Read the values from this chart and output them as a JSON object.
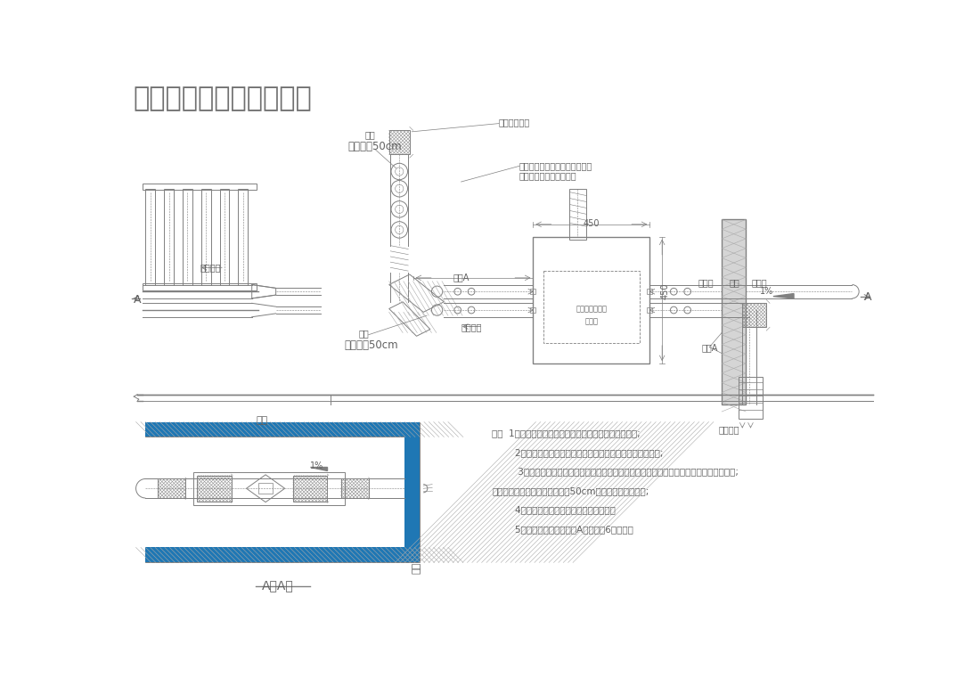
{
  "title": "家用中央新风系统示意图",
  "bg_color": "#ffffff",
  "line_color": "#808080",
  "text_color": "#606060",
  "note_lines": [
    "注：  1、本图为采用全热交换新风机组的新风系统平面图;",
    "        2、热交换新风机组需预留折卸热交换芯和滤网的维护空间;",
    "         3、机组与管道连接采用塑料波纹软管过度，管道与室内风口连接采用塑料波纹软管过度;",
    "每处塑料波纹软管长度不得大于50cm，不得作为弯头使用;",
    "        4、卫生间、厨房间换气不在本系统内。",
    "        5、与设备连接的直管段A处须大于6倍管径。"
  ]
}
